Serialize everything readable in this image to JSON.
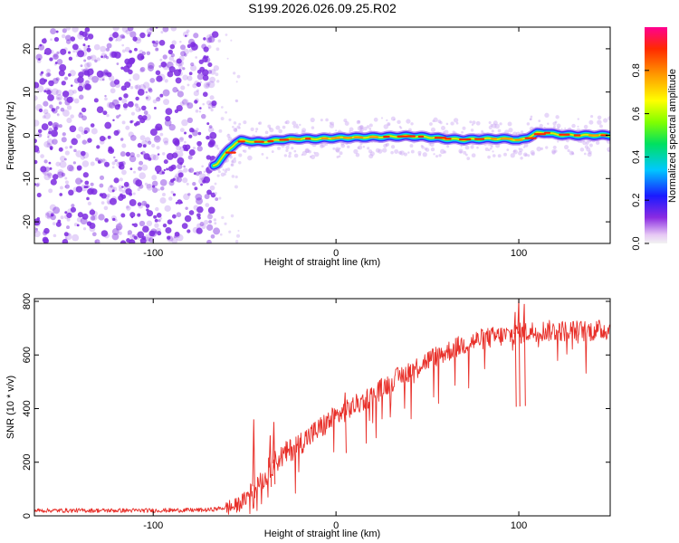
{
  "title": "S199.2026.026.09.25.R02",
  "colors": {
    "snr_line": "#e8302a",
    "scatter": "#7d2ae0",
    "axis": "#000000"
  },
  "chart_data": [
    {
      "id": "spectrogram",
      "type": "heatmap",
      "xlabel": "Height of straight line (km)",
      "ylabel": "Frequency (Hz)",
      "xlim": [
        -165,
        150
      ],
      "ylim": [
        -25,
        25
      ],
      "x_ticks": [
        -100,
        0,
        100
      ],
      "y_ticks": [
        20,
        10,
        0,
        -10,
        -20
      ],
      "noise_region": {
        "x_from": -165,
        "x_to": -67
      },
      "ridge": {
        "x": [
          -67,
          -65,
          -62,
          -58,
          -55,
          -52,
          -48,
          -45,
          -40,
          -35,
          -30,
          -20,
          -10,
          0,
          10,
          20,
          30,
          40,
          50,
          60,
          70,
          80,
          90,
          95,
          100,
          105,
          110,
          115,
          120,
          130,
          140,
          150
        ],
        "freq": [
          -7,
          -6.5,
          -5,
          -3,
          -1.8,
          -1.2,
          -1.3,
          -1.5,
          -1.5,
          -1.3,
          -1.0,
          -0.8,
          -0.8,
          -0.6,
          -0.5,
          -0.4,
          -0.3,
          -0.2,
          -0.4,
          -0.8,
          -1.0,
          -0.8,
          -0.8,
          -0.8,
          -1.2,
          -0.5,
          0.5,
          0.6,
          0.2,
          0.0,
          0.0,
          0.0
        ]
      },
      "colorbar": {
        "label": "Normalized spectral amplitude",
        "ticks": [
          "0.0",
          "0.2",
          "0.4",
          "0.6",
          "0.8"
        ],
        "tick_values": [
          0.0,
          0.2,
          0.4,
          0.6,
          0.8
        ],
        "range": [
          0,
          1
        ],
        "colormap": "rainbow"
      }
    },
    {
      "id": "snr",
      "type": "line",
      "xlabel": "Height of straight line (km)",
      "ylabel": "SNR (10 * v/v)",
      "xlim": [
        -165,
        150
      ],
      "ylim": [
        0,
        810
      ],
      "x_ticks": [
        -100,
        0,
        100
      ],
      "y_ticks": [
        0,
        200,
        400,
        600,
        800
      ],
      "trend": {
        "x": [
          -165,
          -140,
          -100,
          -70,
          -55,
          -50,
          -45,
          -40,
          -35,
          -30,
          -20,
          -10,
          0,
          10,
          20,
          30,
          40,
          50,
          60,
          70,
          80,
          90,
          100,
          110,
          120,
          130,
          140,
          150
        ],
        "y": [
          20,
          20,
          20,
          22,
          35,
          60,
          110,
          140,
          190,
          220,
          270,
          320,
          370,
          410,
          450,
          500,
          540,
          580,
          610,
          640,
          660,
          670,
          680,
          690,
          690,
          690,
          690,
          695
        ]
      },
      "spikes": [
        {
          "x": -45,
          "y": 360
        },
        {
          "x": -34,
          "y": 350
        },
        {
          "x": -36,
          "y": 300
        },
        {
          "x": 5,
          "y": 460
        },
        {
          "x": 100,
          "y": 810
        },
        {
          "x": 103,
          "y": 790
        },
        {
          "x": 98,
          "y": 760
        }
      ]
    }
  ]
}
